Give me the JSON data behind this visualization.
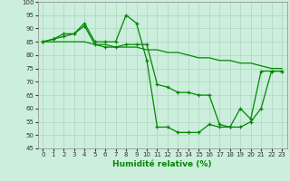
{
  "xlabel": "Humidité relative (%)",
  "xlim": [
    -0.5,
    23.5
  ],
  "ylim": [
    45,
    100
  ],
  "yticks": [
    45,
    50,
    55,
    60,
    65,
    70,
    75,
    80,
    85,
    90,
    95,
    100
  ],
  "xticks": [
    0,
    1,
    2,
    3,
    4,
    5,
    6,
    7,
    8,
    9,
    10,
    11,
    12,
    13,
    14,
    15,
    16,
    17,
    18,
    19,
    20,
    21,
    22,
    23
  ],
  "line_color": "#008800",
  "bg_color": "#cceedd",
  "grid_color": "#aaccbb",
  "lines": [
    {
      "x": [
        0,
        1,
        2,
        3,
        4,
        5,
        6,
        7,
        8,
        9,
        10,
        11,
        12,
        13,
        14,
        15,
        16,
        17,
        18,
        19,
        20,
        21,
        22,
        23
      ],
      "y": [
        85,
        86,
        88,
        88,
        92,
        85,
        85,
        85,
        95,
        92,
        78,
        53,
        53,
        51,
        51,
        51,
        54,
        53,
        53,
        60,
        56,
        74,
        74,
        74
      ],
      "marker": "+",
      "lw": 0.9
    },
    {
      "x": [
        0,
        1,
        2,
        3,
        4,
        5,
        6,
        7,
        8,
        9,
        10,
        11,
        12,
        13,
        14,
        15,
        16,
        17,
        18,
        19,
        20,
        21,
        22,
        23
      ],
      "y": [
        85,
        86,
        87,
        88,
        91,
        84,
        83,
        83,
        84,
        84,
        84,
        69,
        68,
        66,
        66,
        65,
        65,
        54,
        53,
        53,
        55,
        60,
        74,
        74
      ],
      "marker": "+",
      "lw": 0.9
    },
    {
      "x": [
        0,
        1,
        2,
        3,
        4,
        5,
        6,
        7,
        8,
        9,
        10,
        11,
        12,
        13,
        14,
        15,
        16,
        17,
        18,
        19,
        20,
        21,
        22,
        23
      ],
      "y": [
        85,
        85,
        85,
        85,
        85,
        84,
        84,
        83,
        83,
        83,
        82,
        82,
        81,
        81,
        80,
        79,
        79,
        78,
        78,
        77,
        77,
        76,
        75,
        75
      ],
      "marker": null,
      "lw": 0.9
    }
  ]
}
